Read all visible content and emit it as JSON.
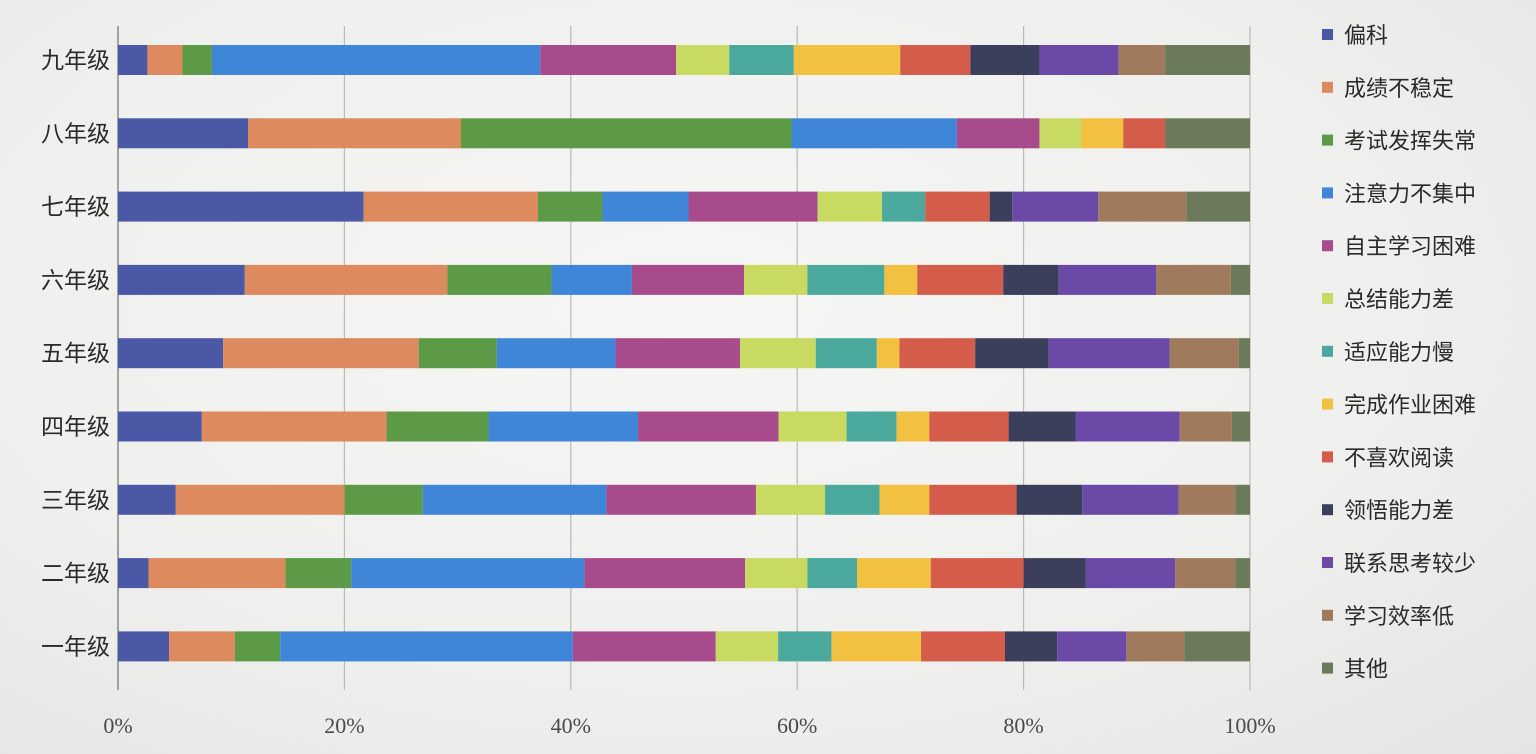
{
  "chart_data": {
    "type": "bar",
    "orientation": "horizontal",
    "stacked": "percent",
    "title": "",
    "xlabel": "",
    "ylabel": "",
    "xlim": [
      0,
      100
    ],
    "grid": "vertical",
    "legend_position": "right",
    "categories": [
      "九年级",
      "八年级",
      "七年级",
      "六年级",
      "五年级",
      "四年级",
      "三年级",
      "二年级",
      "一年级"
    ],
    "x_ticks": [
      "0%",
      "20%",
      "40%",
      "60%",
      "80%",
      "100%"
    ],
    "series": [
      {
        "name": "偏科",
        "color": "#4b58a6",
        "values": [
          2.6,
          11.5,
          21.7,
          11.2,
          9.3,
          7.4,
          5.1,
          2.7,
          4.5
        ]
      },
      {
        "name": "成绩不稳定",
        "color": "#dc8a5e",
        "values": [
          3.1,
          18.8,
          15.4,
          17.9,
          17.3,
          16.3,
          14.9,
          12.1,
          5.8
        ]
      },
      {
        "name": "考试发挥失常",
        "color": "#5c9a48",
        "values": [
          2.6,
          29.2,
          5.7,
          9.2,
          6.9,
          9.0,
          6.9,
          5.8,
          4.0
        ]
      },
      {
        "name": "注意力不集中",
        "color": "#3f86d8",
        "values": [
          29.0,
          14.6,
          7.6,
          7.1,
          10.5,
          13.2,
          16.2,
          20.6,
          25.8
        ]
      },
      {
        "name": "自主学习困难",
        "color": "#a84b8c",
        "values": [
          12.0,
          7.3,
          11.4,
          9.9,
          11.0,
          12.4,
          13.2,
          14.2,
          12.6
        ]
      },
      {
        "name": "总结能力差",
        "color": "#c9da62",
        "values": [
          4.7,
          3.7,
          5.7,
          5.6,
          6.7,
          6.0,
          6.1,
          5.5,
          5.5
        ]
      },
      {
        "name": "适应能力慢",
        "color": "#4aa89c",
        "values": [
          5.7,
          0,
          3.8,
          6.8,
          5.4,
          4.4,
          4.8,
          4.4,
          4.7
        ]
      },
      {
        "name": "完成作业困难",
        "color": "#f2c142",
        "values": [
          9.4,
          3.7,
          0,
          2.9,
          2.0,
          2.9,
          4.4,
          6.5,
          7.9
        ]
      },
      {
        "name": "不喜欢阅读",
        "color": "#d35c4a",
        "values": [
          6.2,
          3.7,
          5.7,
          7.6,
          6.7,
          7.0,
          7.7,
          8.2,
          7.4
        ]
      },
      {
        "name": "领悟能力差",
        "color": "#3b3f5c",
        "values": [
          6.1,
          0,
          2.0,
          4.9,
          6.5,
          5.9,
          5.8,
          5.5,
          4.6
        ]
      },
      {
        "name": "联系思考较少",
        "color": "#6a4aa6",
        "values": [
          7.0,
          0,
          7.6,
          8.6,
          10.7,
          9.2,
          8.5,
          7.9,
          6.1
        ]
      },
      {
        "name": "学习效率低",
        "color": "#a07a5c",
        "values": [
          4.1,
          0,
          7.8,
          6.6,
          6.1,
          4.6,
          5.0,
          5.3,
          5.1
        ]
      },
      {
        "name": "其他",
        "color": "#6b7a5a",
        "values": [
          7.5,
          7.5,
          5.6,
          1.7,
          1.0,
          1.6,
          1.3,
          1.3,
          5.8
        ]
      }
    ]
  }
}
